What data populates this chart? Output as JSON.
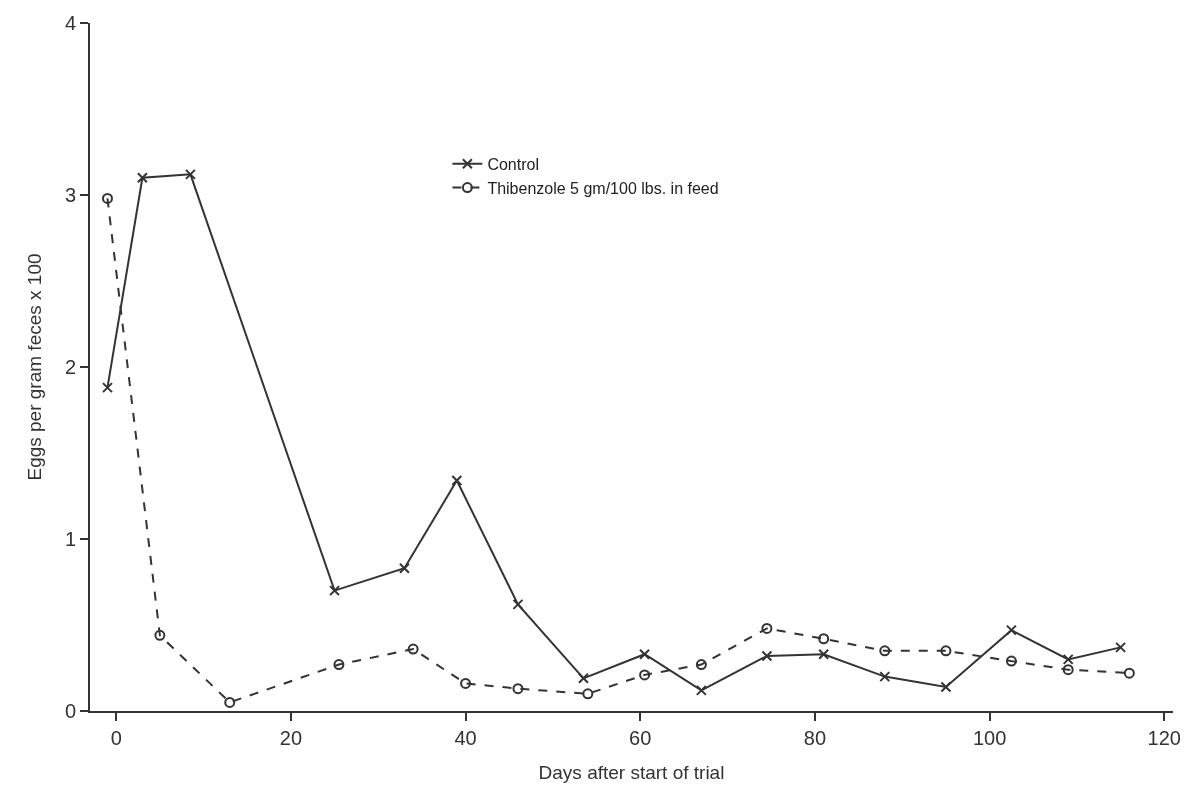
{
  "chart_data": {
    "type": "line",
    "xlabel": "Days after start of trial",
    "ylabel": "Eggs per gram feces x 100",
    "xlim": [
      -3,
      121
    ],
    "xticks": [
      0,
      20,
      40,
      60,
      80,
      100,
      120
    ],
    "ylim": [
      0,
      4
    ],
    "yticks": [
      0,
      1,
      2,
      3,
      4
    ],
    "grid": false,
    "legend": "top",
    "series": [
      {
        "name": "Control",
        "color": "#333333",
        "marker": "cross",
        "line_style": "solid",
        "x": [
          -1,
          3,
          8.5,
          25,
          33,
          39,
          46,
          53.5,
          60.5,
          67,
          74.5,
          81,
          88,
          95,
          102.5,
          109,
          115
        ],
        "values": [
          1.88,
          3.1,
          3.12,
          0.7,
          0.83,
          1.34,
          0.62,
          0.19,
          0.33,
          0.12,
          0.32,
          0.33,
          0.2,
          0.14,
          0.47,
          0.3,
          0.37
        ]
      },
      {
        "name": "Thibenzole 5 gm/100 lbs. in feed",
        "color": "#333333",
        "marker": "circle",
        "line_style": "dashed",
        "x": [
          -1,
          5,
          13,
          25.5,
          34,
          40,
          46,
          54,
          60.5,
          67,
          74.5,
          81,
          88,
          95,
          102.5,
          109,
          116
        ],
        "values": [
          2.98,
          0.44,
          0.05,
          0.27,
          0.36,
          0.16,
          0.13,
          0.1,
          0.21,
          0.27,
          0.48,
          0.42,
          0.35,
          0.35,
          0.29,
          0.24,
          0.22
        ]
      }
    ]
  }
}
